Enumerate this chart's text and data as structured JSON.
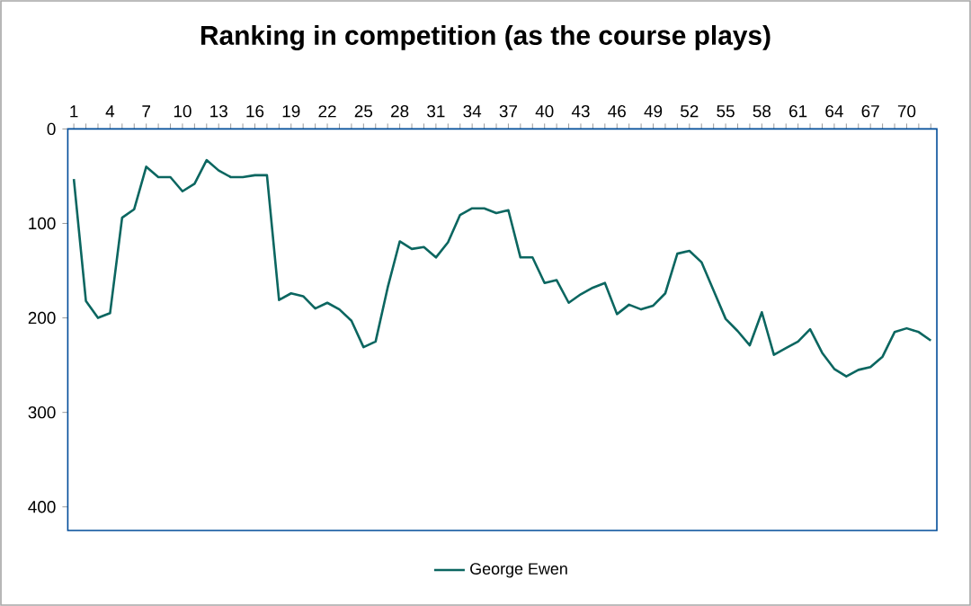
{
  "chart_data": {
    "type": "line",
    "title": "Ranking in competition (as the course plays)",
    "categories": [
      "1",
      null,
      null,
      "4",
      null,
      null,
      "7",
      null,
      null,
      "10",
      null,
      null,
      "13",
      null,
      null,
      "16",
      null,
      null,
      "19",
      null,
      null,
      "22",
      null,
      null,
      "25",
      null,
      null,
      "28",
      null,
      null,
      "31",
      null,
      null,
      "34",
      null,
      null,
      "37",
      null,
      null,
      "40",
      null,
      null,
      "43",
      null,
      null,
      "46",
      null,
      null,
      "49",
      null,
      null,
      "52",
      null,
      null,
      "55",
      null,
      null,
      "58",
      null,
      null,
      "61",
      null,
      null,
      "64",
      null,
      null,
      "67",
      null,
      null,
      "70",
      null,
      null
    ],
    "series": [
      {
        "name": "George Ewen",
        "color": "#0b6660",
        "values": [
          53,
          182,
          200,
          195,
          94,
          85,
          40,
          51,
          51,
          66,
          58,
          33,
          44,
          51,
          51,
          49,
          49,
          181,
          174,
          177,
          190,
          184,
          191,
          203,
          231,
          225,
          168,
          119,
          127,
          125,
          136,
          120,
          91,
          84,
          84,
          89,
          86,
          136,
          136,
          163,
          160,
          184,
          175,
          168,
          163,
          196,
          186,
          191,
          187,
          174,
          132,
          129,
          141,
          171,
          201,
          214,
          229,
          194,
          239,
          232,
          225,
          212,
          237,
          254,
          262,
          255,
          252,
          241,
          215,
          211,
          215,
          224
        ]
      }
    ],
    "ylim": [
      425,
      0
    ],
    "yticks": [
      0,
      100,
      200,
      300,
      400
    ],
    "legend": "bottom",
    "marker": "none",
    "line_style": "solid",
    "grid": false
  }
}
